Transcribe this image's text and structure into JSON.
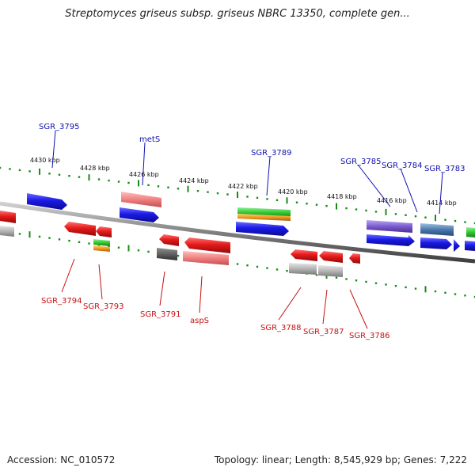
{
  "title": "Streptomyces griseus subsp. griseus NBRC 13350, complete gen...",
  "accession": "Accession: NC_010572",
  "summary": "Topology: linear; Length: 8,545,929 bp; Genes: 7,222",
  "ticks": [
    "4430 kbp",
    "4428 kbp",
    "4426 kbp",
    "4424 kbp",
    "4422 kbp",
    "4420 kbp",
    "4418 kbp",
    "4416 kbp",
    "4414 kbp"
  ],
  "top_labels": [
    "SGR_3795",
    "metS",
    "SGR_3789",
    "SGR_3785",
    "SGR_3784",
    "SGR_3783"
  ],
  "bottom_labels": [
    "SGR_3794",
    "SGR_3793",
    "SGR_3791",
    "aspS",
    "SGR_3788",
    "SGR_3787",
    "SGR_3786"
  ],
  "colors": {
    "gene_blue": "#1a1ae6",
    "gene_red": "#e61a1a",
    "rna_pink": "#f08080",
    "gray": "#b4b4b4",
    "green": "#32c832",
    "orange": "#f09a1a",
    "purple": "#7a5cd0",
    "steel": "#4a7ab0",
    "dark_gray": "#606060",
    "axis_green": "#1a8a1a"
  }
}
